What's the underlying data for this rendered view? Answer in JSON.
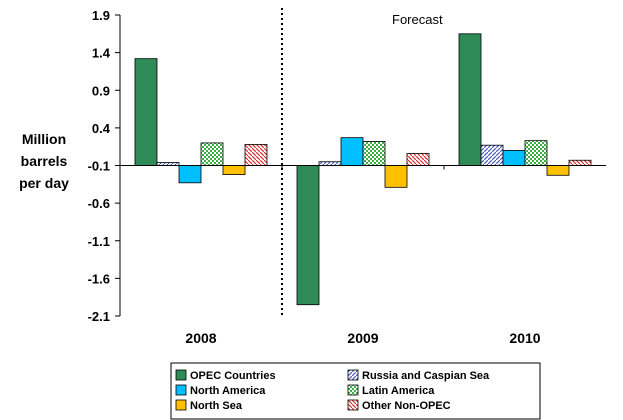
{
  "chart_data": {
    "type": "bar",
    "categories": [
      "2008",
      "2009",
      "2010"
    ],
    "ylabel": [
      "Million",
      "barrels",
      "per day"
    ],
    "ylim": [
      -2.1,
      1.9
    ],
    "yticks": [
      1.9,
      1.4,
      0.9,
      0.4,
      -0.1,
      -0.6,
      -1.1,
      -1.6,
      -2.1
    ],
    "ytick_labels": [
      "1.9",
      "1.4",
      "0.9",
      "0.4",
      "-0.1",
      "-0.6",
      "-1.1",
      "-1.6",
      "-2.1"
    ],
    "baseline": -0.1,
    "annotation": "Forecast",
    "grid": false,
    "legend_position": "bottom",
    "series": [
      {
        "name": "OPEC Countries",
        "color": "#2E8B57",
        "pattern": "solid",
        "values": [
          1.32,
          -1.95,
          1.65
        ]
      },
      {
        "name": "Russia and Caspian Sea",
        "color": "#4B5DB8",
        "pattern": "hatch",
        "values": [
          -0.06,
          -0.05,
          0.17
        ]
      },
      {
        "name": "North America",
        "color": "#00BFFF",
        "pattern": "solid",
        "values": [
          -0.33,
          0.27,
          0.1
        ]
      },
      {
        "name": "Latin America",
        "color": "#3CB043",
        "pattern": "checker",
        "values": [
          0.2,
          0.22,
          0.23
        ]
      },
      {
        "name": "North Sea",
        "color": "#FFC000",
        "pattern": "solid",
        "values": [
          -0.22,
          -0.39,
          -0.23
        ]
      },
      {
        "name": "Other Non-OPEC",
        "color": "#E03030",
        "pattern": "diag",
        "values": [
          0.18,
          0.06,
          -0.03
        ]
      }
    ]
  }
}
